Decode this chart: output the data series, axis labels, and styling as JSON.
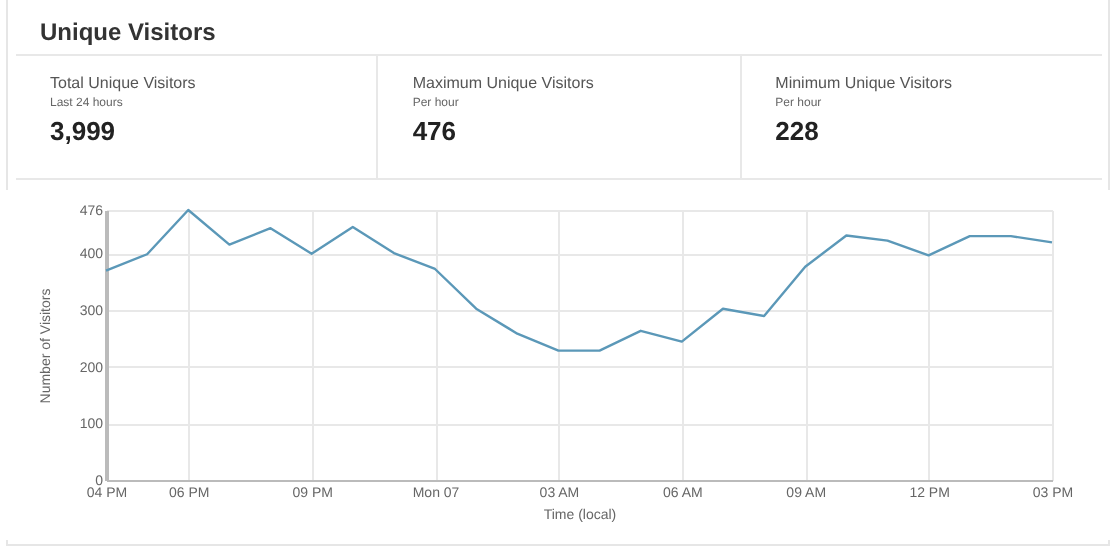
{
  "chart_data": [
    {
      "type": "other",
      "title": "Unique Visitors",
      "annotations": [
        "Total Unique Visitors",
        "Last 24 hours",
        "3,999",
        "Maximum Unique Visitors",
        "Per hour",
        "476",
        "Minimum Unique Visitors",
        "Per hour",
        "228"
      ]
    },
    {
      "type": "line",
      "xlabel": "Time (local)",
      "ylabel": "Number of Visitors",
      "categories": [
        "04 PM",
        null,
        "06 PM",
        null,
        null,
        "09 PM",
        null,
        null,
        "Mon 07",
        null,
        null,
        "03 AM",
        null,
        null,
        "06 AM",
        null,
        null,
        "09 AM",
        null,
        null,
        "12 PM",
        null,
        null,
        "03 PM"
      ],
      "series": [
        {
          "color": "#5b98b8",
          "values": [
            369,
            398,
            476,
            415,
            444,
            399,
            446,
            400,
            372,
            302,
            258,
            228,
            228,
            263,
            244,
            302,
            289,
            376,
            431,
            422,
            396,
            430,
            430,
            419
          ]
        }
      ],
      "ylim": [
        0,
        476
      ],
      "yticks": [
        0,
        100,
        200,
        300,
        400,
        476
      ],
      "grid": true,
      "marker": "none",
      "line_style": "solid"
    }
  ]
}
